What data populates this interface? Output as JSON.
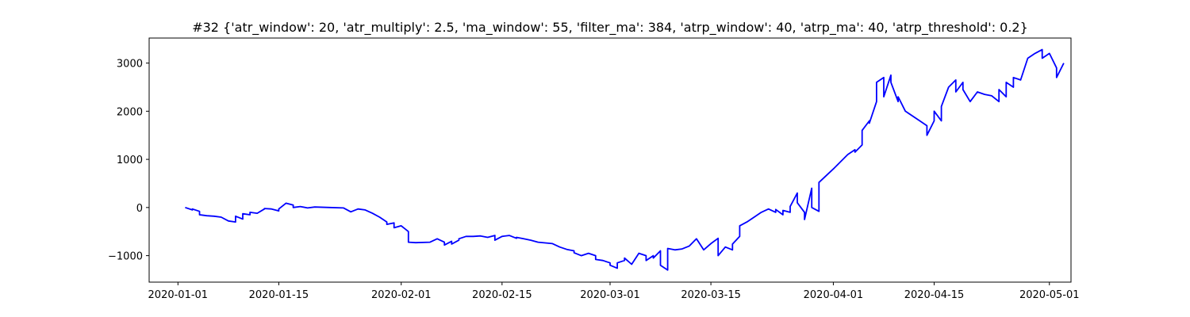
{
  "chart_data": {
    "type": "line",
    "title": "#32 {'atr_window': 20, 'atr_multiply': 2.5, 'ma_window': 55, 'filter_ma': 384, 'atrp_window': 40, 'atrp_ma': 40, 'atrp_threshold': 0.2}",
    "xlabel": "",
    "ylabel": "",
    "x_axis_kind": "date",
    "xlim": [
      "2019-12-28",
      "2020-05-04"
    ],
    "ylim": [
      -1550,
      3520
    ],
    "xticks": [
      "2020-01-01",
      "2020-01-15",
      "2020-02-01",
      "2020-02-15",
      "2020-03-01",
      "2020-03-15",
      "2020-04-01",
      "2020-04-15",
      "2020-05-01"
    ],
    "yticks": [
      -1000,
      0,
      1000,
      2000,
      3000
    ],
    "ytick_labels": [
      "−1000",
      "0",
      "1000",
      "2000",
      "3000"
    ],
    "grid": false,
    "legend": "none",
    "colors": {
      "line": "#0000ff",
      "axes": "#000000",
      "background": "#ffffff"
    },
    "series": [
      {
        "points": [
          [
            "2020-01-02",
            0
          ],
          [
            "2020-01-03",
            -50
          ],
          [
            "2020-01-03",
            -30
          ],
          [
            "2020-01-04",
            -80
          ],
          [
            "2020-01-04",
            -150
          ],
          [
            "2020-01-05",
            -170
          ],
          [
            "2020-01-06",
            -180
          ],
          [
            "2020-01-07",
            -200
          ],
          [
            "2020-01-08",
            -280
          ],
          [
            "2020-01-09",
            -300
          ],
          [
            "2020-01-09",
            -180
          ],
          [
            "2020-01-10",
            -240
          ],
          [
            "2020-01-10",
            -130
          ],
          [
            "2020-01-11",
            -150
          ],
          [
            "2020-01-11",
            -100
          ],
          [
            "2020-01-12",
            -120
          ],
          [
            "2020-01-13",
            -30
          ],
          [
            "2020-01-13",
            -20
          ],
          [
            "2020-01-14",
            -30
          ],
          [
            "2020-01-15",
            -70
          ],
          [
            "2020-01-15",
            -30
          ],
          [
            "2020-01-16",
            90
          ],
          [
            "2020-01-17",
            50
          ],
          [
            "2020-01-17",
            0
          ],
          [
            "2020-01-18",
            20
          ],
          [
            "2020-01-19",
            -10
          ],
          [
            "2020-01-20",
            10
          ],
          [
            "2020-01-22",
            0
          ],
          [
            "2020-01-24",
            -10
          ],
          [
            "2020-01-25",
            -90
          ],
          [
            "2020-01-26",
            -30
          ],
          [
            "2020-01-27",
            -50
          ],
          [
            "2020-01-28",
            -120
          ],
          [
            "2020-01-29",
            -200
          ],
          [
            "2020-01-30",
            -300
          ],
          [
            "2020-01-30",
            -350
          ],
          [
            "2020-01-31",
            -320
          ],
          [
            "2020-01-31",
            -420
          ],
          [
            "2020-02-01",
            -380
          ],
          [
            "2020-02-02",
            -500
          ],
          [
            "2020-02-02",
            -720
          ],
          [
            "2020-02-03",
            -730
          ],
          [
            "2020-02-05",
            -720
          ],
          [
            "2020-02-06",
            -650
          ],
          [
            "2020-02-07",
            -720
          ],
          [
            "2020-02-07",
            -780
          ],
          [
            "2020-02-08",
            -700
          ],
          [
            "2020-02-08",
            -760
          ],
          [
            "2020-02-09",
            -680
          ],
          [
            "2020-02-09",
            -650
          ],
          [
            "2020-02-10",
            -600
          ],
          [
            "2020-02-11",
            -600
          ],
          [
            "2020-02-12",
            -590
          ],
          [
            "2020-02-13",
            -620
          ],
          [
            "2020-02-14",
            -580
          ],
          [
            "2020-02-14",
            -680
          ],
          [
            "2020-02-15",
            -600
          ],
          [
            "2020-02-16",
            -580
          ],
          [
            "2020-02-17",
            -640
          ],
          [
            "2020-02-17",
            -620
          ],
          [
            "2020-02-18",
            -650
          ],
          [
            "2020-02-19",
            -680
          ],
          [
            "2020-02-20",
            -720
          ],
          [
            "2020-02-22",
            -750
          ],
          [
            "2020-02-23",
            -820
          ],
          [
            "2020-02-24",
            -870
          ],
          [
            "2020-02-25",
            -900
          ],
          [
            "2020-02-25",
            -940
          ],
          [
            "2020-02-26",
            -1000
          ],
          [
            "2020-02-27",
            -950
          ],
          [
            "2020-02-28",
            -1000
          ],
          [
            "2020-02-28",
            -1080
          ],
          [
            "2020-02-29",
            -1100
          ],
          [
            "2020-03-01",
            -1150
          ],
          [
            "2020-03-01",
            -1200
          ],
          [
            "2020-03-02",
            -1260
          ],
          [
            "2020-03-02",
            -1150
          ],
          [
            "2020-03-03",
            -1100
          ],
          [
            "2020-03-03",
            -1050
          ],
          [
            "2020-03-04",
            -1180
          ],
          [
            "2020-03-05",
            -950
          ],
          [
            "2020-03-06",
            -1000
          ],
          [
            "2020-03-06",
            -1100
          ],
          [
            "2020-03-07",
            -1000
          ],
          [
            "2020-03-07",
            -1050
          ],
          [
            "2020-03-08",
            -900
          ],
          [
            "2020-03-08",
            -1200
          ],
          [
            "2020-03-09",
            -1300
          ],
          [
            "2020-03-09",
            -850
          ],
          [
            "2020-03-10",
            -880
          ],
          [
            "2020-03-11",
            -860
          ],
          [
            "2020-03-12",
            -800
          ],
          [
            "2020-03-13",
            -650
          ],
          [
            "2020-03-14",
            -880
          ],
          [
            "2020-03-15",
            -750
          ],
          [
            "2020-03-16",
            -640
          ],
          [
            "2020-03-16",
            -1000
          ],
          [
            "2020-03-17",
            -820
          ],
          [
            "2020-03-18",
            -880
          ],
          [
            "2020-03-18",
            -760
          ],
          [
            "2020-03-19",
            -600
          ],
          [
            "2020-03-19",
            -380
          ],
          [
            "2020-03-20",
            -300
          ],
          [
            "2020-03-21",
            -200
          ],
          [
            "2020-03-22",
            -100
          ],
          [
            "2020-03-23",
            -30
          ],
          [
            "2020-03-24",
            -100
          ],
          [
            "2020-03-24",
            -40
          ],
          [
            "2020-03-25",
            -150
          ],
          [
            "2020-03-25",
            -60
          ],
          [
            "2020-03-26",
            -100
          ],
          [
            "2020-03-26",
            20
          ],
          [
            "2020-03-27",
            300
          ],
          [
            "2020-03-27",
            100
          ],
          [
            "2020-03-28",
            -100
          ],
          [
            "2020-03-28",
            -250
          ],
          [
            "2020-03-29",
            400
          ],
          [
            "2020-03-29",
            0
          ],
          [
            "2020-03-30",
            -80
          ],
          [
            "2020-03-30",
            520
          ],
          [
            "2020-04-01",
            800
          ],
          [
            "2020-04-03",
            1100
          ],
          [
            "2020-04-04",
            1200
          ],
          [
            "2020-04-04",
            1150
          ],
          [
            "2020-04-05",
            1300
          ],
          [
            "2020-04-05",
            1600
          ],
          [
            "2020-04-06",
            1800
          ],
          [
            "2020-04-06",
            1750
          ],
          [
            "2020-04-07",
            2200
          ],
          [
            "2020-04-07",
            2600
          ],
          [
            "2020-04-08",
            2700
          ],
          [
            "2020-04-08",
            2300
          ],
          [
            "2020-04-09",
            2750
          ],
          [
            "2020-04-09",
            2600
          ],
          [
            "2020-04-10",
            2200
          ],
          [
            "2020-04-10",
            2300
          ],
          [
            "2020-04-11",
            2000
          ],
          [
            "2020-04-13",
            1800
          ],
          [
            "2020-04-14",
            1700
          ],
          [
            "2020-04-14",
            1500
          ],
          [
            "2020-04-15",
            1800
          ],
          [
            "2020-04-15",
            2000
          ],
          [
            "2020-04-16",
            1800
          ],
          [
            "2020-04-16",
            2100
          ],
          [
            "2020-04-17",
            2500
          ],
          [
            "2020-04-18",
            2650
          ],
          [
            "2020-04-18",
            2400
          ],
          [
            "2020-04-19",
            2600
          ],
          [
            "2020-04-19",
            2450
          ],
          [
            "2020-04-20",
            2200
          ],
          [
            "2020-04-21",
            2400
          ],
          [
            "2020-04-22",
            2350
          ],
          [
            "2020-04-23",
            2320
          ],
          [
            "2020-04-24",
            2200
          ],
          [
            "2020-04-24",
            2450
          ],
          [
            "2020-04-25",
            2300
          ],
          [
            "2020-04-25",
            2600
          ],
          [
            "2020-04-26",
            2500
          ],
          [
            "2020-04-26",
            2700
          ],
          [
            "2020-04-27",
            2650
          ],
          [
            "2020-04-28",
            3100
          ],
          [
            "2020-04-29",
            3200
          ],
          [
            "2020-04-30",
            3280
          ],
          [
            "2020-04-30",
            3100
          ],
          [
            "2020-05-01",
            3200
          ],
          [
            "2020-05-02",
            2900
          ],
          [
            "2020-05-02",
            2700
          ],
          [
            "2020-05-03",
            3000
          ]
        ]
      }
    ]
  }
}
